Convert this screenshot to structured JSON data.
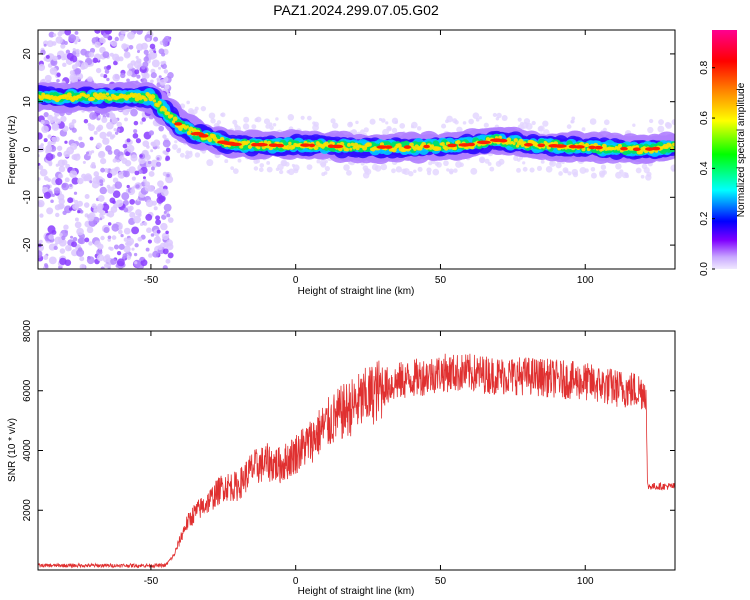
{
  "title": "PAZ1.2024.299.07.05.G02",
  "chart_data": [
    {
      "type": "heatmap",
      "xlabel": "Height of straight line (km)",
      "ylabel": "Frequency (Hz)",
      "xlim": [
        -89,
        131
      ],
      "ylim": [
        -25,
        25
      ],
      "xticks": [
        -50,
        0,
        50,
        100
      ],
      "yticks": [
        -20,
        -10,
        0,
        10,
        20
      ],
      "colorbar": {
        "label": "Normalized spectral amplitude",
        "range": [
          0,
          0.95
        ],
        "ticks": [
          0.0,
          0.2,
          0.4,
          0.6,
          0.8
        ],
        "colormap": [
          "#e0d0ff",
          "#8000ff",
          "#0000ff",
          "#00ffff",
          "#00ff00",
          "#ffff00",
          "#ff8000",
          "#ff0000",
          "#ff00aa"
        ]
      },
      "ridge": {
        "description_points_x_km": [
          -89,
          -50,
          -45,
          -40,
          -35,
          -30,
          -25,
          -20,
          -15,
          -10,
          -5,
          0,
          20,
          40,
          60,
          70,
          80,
          100,
          120,
          131
        ],
        "frequency_hz": [
          11,
          11,
          8,
          5,
          3.5,
          2.5,
          1.5,
          1,
          1,
          1,
          0.8,
          1,
          0.5,
          0.5,
          1,
          2,
          1,
          0.5,
          0,
          0.5
        ]
      },
      "noise_region_km": [
        -89,
        -43
      ]
    },
    {
      "type": "line",
      "xlabel": "Height of straight line (km)",
      "ylabel": "SNR (10 * v/v)",
      "xlim": [
        -89,
        131
      ],
      "ylim": [
        0,
        8000
      ],
      "xticks": [
        -50,
        0,
        50,
        100
      ],
      "yticks": [
        2000,
        4000,
        6000,
        8000
      ],
      "color": "#e03030",
      "series": [
        {
          "x": [
            -89,
            -60,
            -45,
            -42,
            -38,
            -35,
            -30,
            -25,
            -20,
            -15,
            -10,
            -5,
            0,
            5,
            10,
            15,
            20,
            25,
            30,
            35,
            40,
            50,
            60,
            70,
            80,
            90,
            100,
            110,
            119,
            121,
            121.5,
            125,
            131
          ],
          "y": [
            150,
            150,
            150,
            500,
            1500,
            1900,
            2300,
            2800,
            2800,
            3400,
            3600,
            3500,
            3900,
            4300,
            4800,
            5200,
            5500,
            5800,
            6100,
            6300,
            6400,
            6600,
            6600,
            6500,
            6500,
            6400,
            6300,
            6100,
            6000,
            6000,
            2800,
            2800,
            2800
          ]
        }
      ]
    }
  ]
}
